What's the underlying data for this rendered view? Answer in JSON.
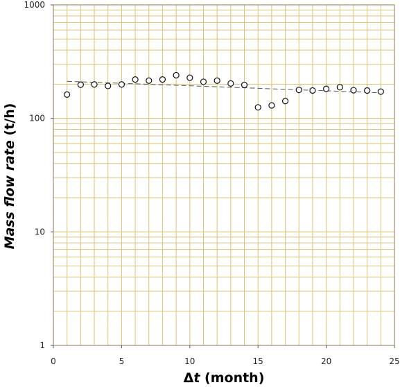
{
  "chart_data": {
    "type": "scatter",
    "xlabel_prefix": "Δ",
    "xlabel_var": "t",
    "xlabel_unit": " (month)",
    "ylabel_main": "Mass flow rate",
    "ylabel_unit": " (t/h)",
    "xlim": [
      0,
      25
    ],
    "ylim": [
      1,
      1000
    ],
    "yscale": "log",
    "grid": true,
    "grid_color": "#d9c27a",
    "x_ticks": [
      {
        "value": 0,
        "label": "0"
      },
      {
        "value": 5,
        "label": "5"
      },
      {
        "value": 10,
        "label": "10"
      },
      {
        "value": 15,
        "label": "15"
      },
      {
        "value": 20,
        "label": "20"
      },
      {
        "value": 25,
        "label": "25"
      }
    ],
    "y_ticks": [
      {
        "value": 1,
        "label": "1"
      },
      {
        "value": 10,
        "label": "10"
      },
      {
        "value": 100,
        "label": "100"
      },
      {
        "value": 1000,
        "label": "1000"
      }
    ],
    "series": [
      {
        "marker": "open-circle",
        "x": [
          1,
          2,
          3,
          4,
          5,
          6,
          7,
          8,
          9,
          10,
          11,
          12,
          13,
          14,
          15,
          16,
          17,
          18,
          19,
          20,
          21,
          22,
          23,
          24
        ],
        "y": [
          162,
          198,
          199,
          193,
          199,
          220,
          215,
          220,
          240,
          228,
          210,
          215,
          203,
          197,
          125,
          130,
          142,
          178,
          176,
          182,
          188,
          177,
          176,
          172
        ]
      }
    ],
    "trendline": {
      "style": "dashed",
      "x": [
        1,
        24
      ],
      "y": [
        212,
        168
      ]
    }
  }
}
